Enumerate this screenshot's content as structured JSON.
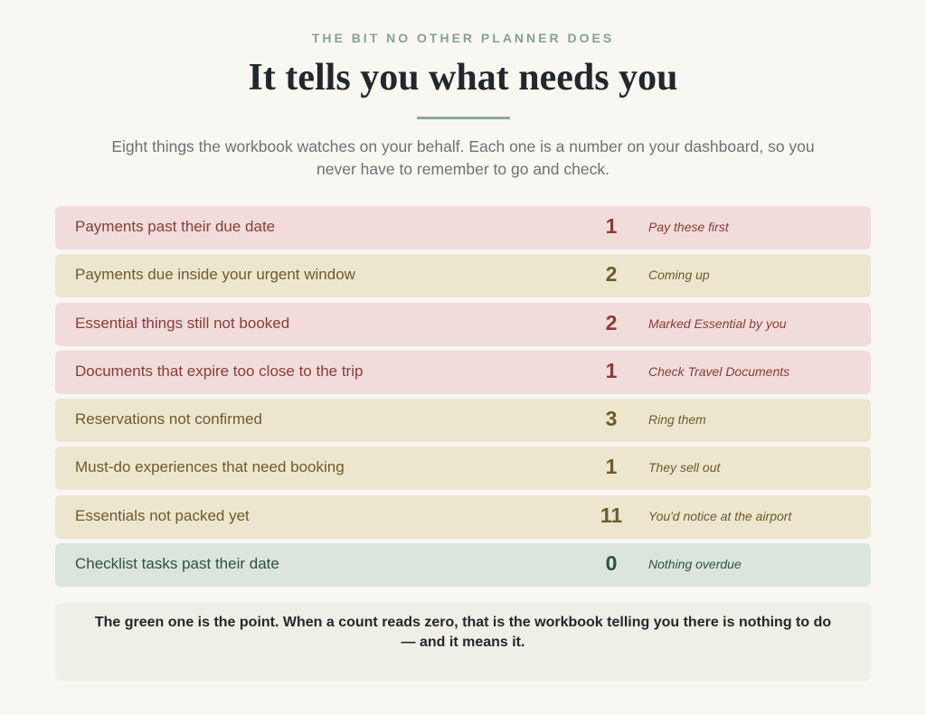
{
  "header": {
    "eyebrow": "THE BIT NO OTHER PLANNER DOES",
    "title": "It tells you what needs you",
    "intro": "Eight things the workbook watches on your behalf. Each one is a number on your dashboard, so you never have to remember to go and check."
  },
  "rows": [
    {
      "label": "Payments past their due date",
      "count": 1,
      "note": "Pay these first",
      "status": "red"
    },
    {
      "label": "Payments due inside your urgent window",
      "count": 2,
      "note": "Coming up",
      "status": "amber"
    },
    {
      "label": "Essential things still not booked",
      "count": 2,
      "note": "Marked Essential by you",
      "status": "red"
    },
    {
      "label": "Documents that expire too close to the trip",
      "count": 1,
      "note": "Check Travel Documents",
      "status": "red"
    },
    {
      "label": "Reservations not confirmed",
      "count": 3,
      "note": "Ring them",
      "status": "amber"
    },
    {
      "label": "Must-do experiences that need booking",
      "count": 1,
      "note": "They sell out",
      "status": "amber"
    },
    {
      "label": "Essentials not packed yet",
      "count": 11,
      "note": "You'd notice at the airport",
      "status": "amber"
    },
    {
      "label": "Checklist tasks past their date",
      "count": 0,
      "note": "Nothing overdue",
      "status": "green"
    }
  ],
  "footer": {
    "note": "The green one is the point. When a count reads zero, that is the workbook telling you there is nothing to do — and it means it."
  }
}
